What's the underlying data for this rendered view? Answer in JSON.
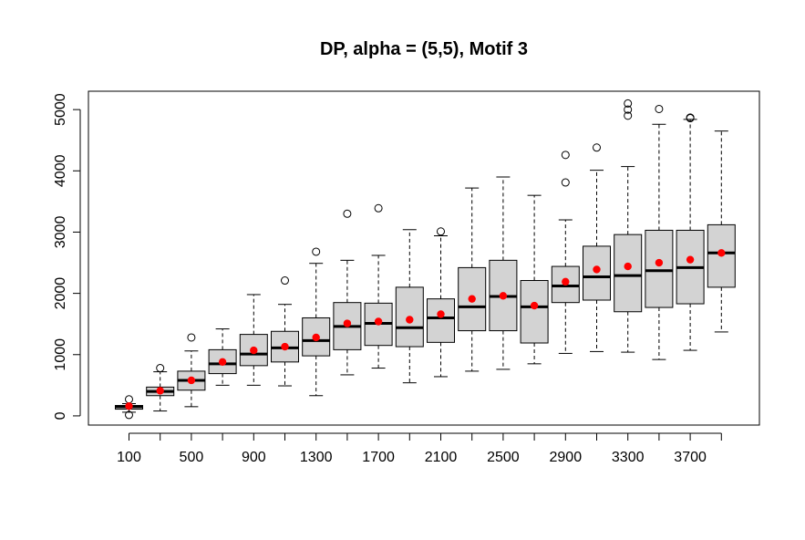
{
  "chart_data": {
    "type": "box",
    "title": "DP, alpha = (5,5), Motif 3",
    "xlabel": "",
    "ylabel": "",
    "ylim": [
      -150,
      5300
    ],
    "y_ticks": [
      0,
      1000,
      2000,
      3000,
      4000,
      5000
    ],
    "x_tick_labels": [
      "100",
      "500",
      "900",
      "1300",
      "1700",
      "2100",
      "2500",
      "2900",
      "3300",
      "3700"
    ],
    "categories": [
      "100",
      "300",
      "500",
      "700",
      "900",
      "1100",
      "1300",
      "1500",
      "1700",
      "1900",
      "2100",
      "2300",
      "2500",
      "2700",
      "2900",
      "3100",
      "3300",
      "3500",
      "3700",
      "3900"
    ],
    "box_fill": "#d3d3d3",
    "mean_color": "#ff0000",
    "grid": false,
    "legend": "none",
    "boxes": [
      {
        "category": "100",
        "whisker_low": 60,
        "q1": 110,
        "median": 150,
        "q3": 170,
        "whisker_high": 200,
        "mean": 160,
        "outliers": [
          270,
          15
        ]
      },
      {
        "category": "300",
        "whisker_low": 80,
        "q1": 330,
        "median": 400,
        "q3": 470,
        "whisker_high": 720,
        "mean": 410,
        "outliers": [
          780
        ]
      },
      {
        "category": "500",
        "whisker_low": 150,
        "q1": 420,
        "median": 580,
        "q3": 730,
        "whisker_high": 1060,
        "mean": 580,
        "outliers": [
          1280
        ]
      },
      {
        "category": "700",
        "whisker_low": 500,
        "q1": 690,
        "median": 850,
        "q3": 1080,
        "whisker_high": 1420,
        "mean": 880,
        "outliers": []
      },
      {
        "category": "900",
        "whisker_low": 500,
        "q1": 820,
        "median": 1010,
        "q3": 1330,
        "whisker_high": 1980,
        "mean": 1070,
        "outliers": []
      },
      {
        "category": "1100",
        "whisker_low": 490,
        "q1": 880,
        "median": 1110,
        "q3": 1380,
        "whisker_high": 1820,
        "mean": 1130,
        "outliers": [
          2210
        ]
      },
      {
        "category": "1300",
        "whisker_low": 330,
        "q1": 980,
        "median": 1230,
        "q3": 1600,
        "whisker_high": 2490,
        "mean": 1280,
        "outliers": [
          2680
        ]
      },
      {
        "category": "1500",
        "whisker_low": 670,
        "q1": 1080,
        "median": 1460,
        "q3": 1850,
        "whisker_high": 2540,
        "mean": 1510,
        "outliers": [
          3300
        ]
      },
      {
        "category": "1700",
        "whisker_low": 780,
        "q1": 1150,
        "median": 1510,
        "q3": 1840,
        "whisker_high": 2620,
        "mean": 1540,
        "outliers": [
          3390
        ]
      },
      {
        "category": "1900",
        "whisker_low": 540,
        "q1": 1130,
        "median": 1440,
        "q3": 2100,
        "whisker_high": 3040,
        "mean": 1570,
        "outliers": []
      },
      {
        "category": "2100",
        "whisker_low": 640,
        "q1": 1200,
        "median": 1600,
        "q3": 1910,
        "whisker_high": 2940,
        "mean": 1660,
        "outliers": [
          3010
        ]
      },
      {
        "category": "2300",
        "whisker_low": 730,
        "q1": 1390,
        "median": 1780,
        "q3": 2420,
        "whisker_high": 3720,
        "mean": 1910,
        "outliers": []
      },
      {
        "category": "2500",
        "whisker_low": 760,
        "q1": 1390,
        "median": 1950,
        "q3": 2540,
        "whisker_high": 3900,
        "mean": 1960,
        "outliers": []
      },
      {
        "category": "2700",
        "whisker_low": 850,
        "q1": 1190,
        "median": 1780,
        "q3": 2210,
        "whisker_high": 3600,
        "mean": 1800,
        "outliers": []
      },
      {
        "category": "2900",
        "whisker_low": 1020,
        "q1": 1850,
        "median": 2120,
        "q3": 2440,
        "whisker_high": 3200,
        "mean": 2190,
        "outliers": [
          3810,
          4260
        ]
      },
      {
        "category": "3100",
        "whisker_low": 1050,
        "q1": 1890,
        "median": 2270,
        "q3": 2770,
        "whisker_high": 4010,
        "mean": 2390,
        "outliers": [
          4380
        ]
      },
      {
        "category": "3300",
        "whisker_low": 1040,
        "q1": 1700,
        "median": 2290,
        "q3": 2960,
        "whisker_high": 4070,
        "mean": 2440,
        "outliers": [
          4900,
          5000,
          5100
        ]
      },
      {
        "category": "3500",
        "whisker_low": 920,
        "q1": 1770,
        "median": 2370,
        "q3": 3030,
        "whisker_high": 4760,
        "mean": 2500,
        "outliers": [
          5010
        ]
      },
      {
        "category": "3700",
        "whisker_low": 1070,
        "q1": 1830,
        "median": 2420,
        "q3": 3030,
        "whisker_high": 4840,
        "mean": 2550,
        "outliers": [
          4860,
          4870
        ]
      },
      {
        "category": "3900",
        "whisker_low": 1370,
        "q1": 2100,
        "median": 2660,
        "q3": 3120,
        "whisker_high": 4650,
        "mean": 2660,
        "outliers": []
      }
    ]
  }
}
